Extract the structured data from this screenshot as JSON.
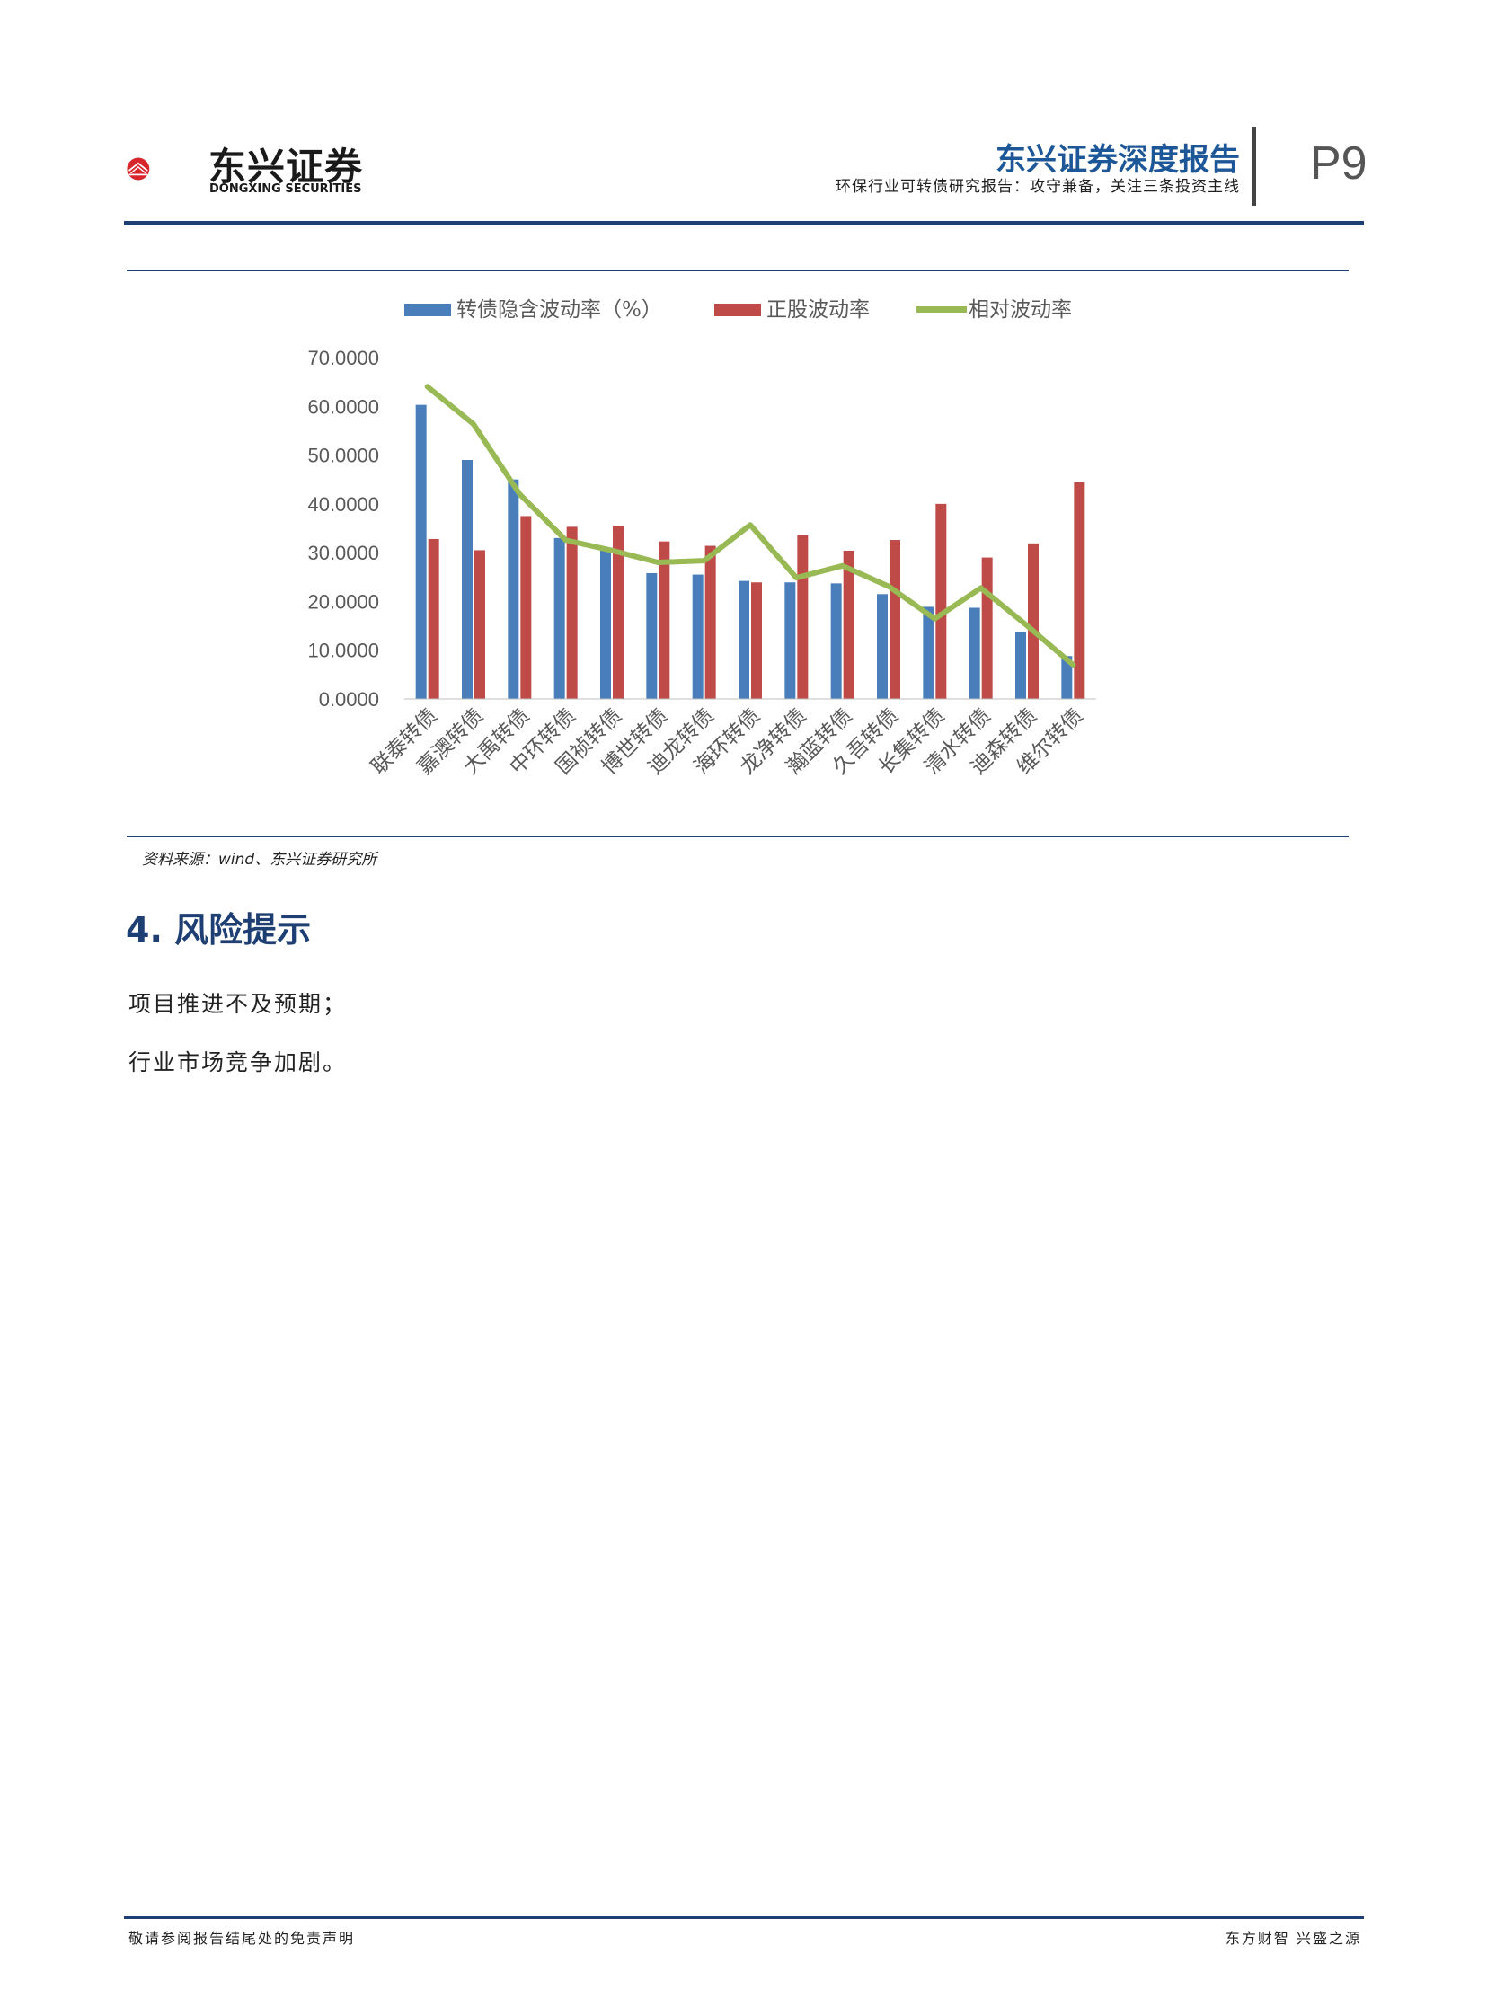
{
  "header": {
    "logo_text": "东兴证券",
    "logo_sub": "DONGXING SECURITIES",
    "title": "东兴证券深度报告",
    "subtitle": "环保行业可转债研究报告：攻守兼备，关注三条投资主线",
    "page": "P9",
    "colors": {
      "brand_red": "#d7262c",
      "brand_blue": "#1e3f73"
    }
  },
  "chart_data": {
    "type": "bar",
    "legend_position": "top",
    "categories": [
      "联泰转债",
      "嘉澳转债",
      "大禹转债",
      "中环转债",
      "国祯转债",
      "博世转债",
      "迪龙转债",
      "海环转债",
      "龙净转债",
      "瀚蓝转债",
      "久吾转债",
      "长集转债",
      "清水转债",
      "迪森转债",
      "维尔转债"
    ],
    "series": [
      {
        "name": "转债隐含波动率（%）",
        "kind": "bar",
        "axis": "left",
        "color": "#4a7ebb",
        "values": [
          60.3,
          49.0,
          45.0,
          33.0,
          31.0,
          25.8,
          25.5,
          24.2,
          23.9,
          23.7,
          21.5,
          18.9,
          18.7,
          13.7,
          8.8
        ]
      },
      {
        "name": "正股波动率",
        "kind": "bar",
        "axis": "left",
        "color": "#be4b48",
        "values": [
          32.8,
          30.5,
          37.5,
          35.3,
          35.5,
          32.3,
          31.4,
          23.9,
          33.6,
          30.4,
          32.6,
          40.0,
          29.0,
          31.9,
          44.5
        ]
      },
      {
        "name": "相对波动率",
        "kind": "line",
        "axis": "right",
        "color": "#98b954",
        "values": [
          1.83,
          1.61,
          1.2,
          0.93,
          0.87,
          0.8,
          0.81,
          1.02,
          0.71,
          0.78,
          0.66,
          0.47,
          0.65,
          0.43,
          0.2
        ]
      }
    ],
    "ylim_left": [
      0,
      70
    ],
    "yticks_left": [
      "0.0000",
      "10.0000",
      "20.0000",
      "30.0000",
      "40.0000",
      "50.0000",
      "60.0000",
      "70.0000"
    ],
    "ylim_right": [
      0,
      2
    ],
    "yticks_right": [
      "0",
      "0.2",
      "0.4",
      "0.6",
      "0.8",
      "1",
      "1.2",
      "1.4",
      "1.6",
      "1.8",
      "2"
    ],
    "grid": false
  },
  "source": "资料来源：wind、东兴证券研究所",
  "section": {
    "title": "4. 风险提示"
  },
  "paragraphs": [
    "项目推进不及预期；",
    "行业市场竞争加剧。"
  ],
  "footer": {
    "left": "敬请参阅报告结尾处的免责声明",
    "right": "东方财智 兴盛之源"
  }
}
